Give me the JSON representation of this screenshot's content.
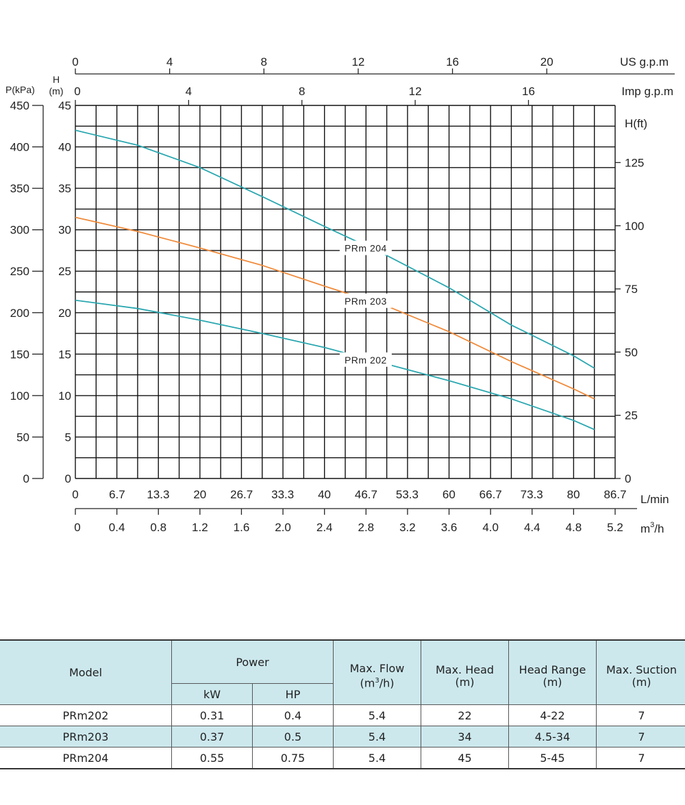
{
  "chart_data": {
    "type": "line",
    "axes": {
      "top_us": {
        "label": "US g.p.m",
        "ticks": [
          "0",
          "4",
          "8",
          "12",
          "16",
          "20"
        ],
        "range": [
          0,
          22.9
        ]
      },
      "top_imp": {
        "label": "Imp g.p.m",
        "ticks": [
          "0",
          "4",
          "8",
          "12",
          "16"
        ],
        "range": [
          0,
          19.06
        ]
      },
      "bottom_lmin": {
        "label": "L/min",
        "ticks": [
          "0",
          "6.7",
          "13.3",
          "20",
          "26.7",
          "33.3",
          "40",
          "46.7",
          "53.3",
          "60",
          "66.7",
          "73.3",
          "80",
          "86.7"
        ],
        "range": [
          0,
          86.7
        ]
      },
      "bottom_m3h": {
        "label_base": "m",
        "label_sup": "3",
        "label_tail": "/h",
        "ticks": [
          "0",
          "0.4",
          "0.8",
          "1.2",
          "1.6",
          "2.0",
          "2.4",
          "2.8",
          "3.2",
          "3.6",
          "4.0",
          "4.4",
          "4.8",
          "5.2"
        ],
        "range": [
          0,
          5.2
        ]
      },
      "left_kpa": {
        "label": "P(kPa)",
        "ticks": [
          "0",
          "50",
          "100",
          "150",
          "200",
          "250",
          "300",
          "350",
          "400",
          "450"
        ],
        "range": [
          0,
          450
        ]
      },
      "left_m": {
        "label_top": "H",
        "label_bottom": "(m)",
        "ticks": [
          "0",
          "5",
          "10",
          "15",
          "20",
          "25",
          "30",
          "35",
          "40",
          "45"
        ],
        "range": [
          0,
          45
        ]
      },
      "right_ft": {
        "label": "H(ft)",
        "ticks": [
          "0",
          "25",
          "50",
          "75",
          "100",
          "125"
        ],
        "range": [
          0,
          147.6
        ]
      }
    },
    "grid": true,
    "x_units": "m3/h",
    "y_units": "m",
    "series": [
      {
        "name": "PRm 204",
        "color": "#2aa7b0",
        "x": [
          0,
          0.6,
          1.2,
          1.8,
          2.4,
          3.0,
          3.6,
          4.2,
          4.8,
          5.0
        ],
        "y": [
          42.0,
          40.2,
          37.5,
          34.0,
          30.4,
          26.9,
          23.0,
          18.5,
          14.8,
          13.3
        ]
      },
      {
        "name": "PRm 203",
        "color": "#f08a3a",
        "x": [
          0,
          0.6,
          1.2,
          1.8,
          2.4,
          3.0,
          3.6,
          4.2,
          4.8,
          5.0
        ],
        "y": [
          31.5,
          29.8,
          27.8,
          25.7,
          23.2,
          20.8,
          17.7,
          14.1,
          10.8,
          9.6
        ]
      },
      {
        "name": "PRm 202",
        "color": "#2aa7b0",
        "x": [
          0,
          0.6,
          1.2,
          1.8,
          2.4,
          3.0,
          3.6,
          4.2,
          4.8,
          5.0
        ],
        "y": [
          21.5,
          20.5,
          19.1,
          17.5,
          15.8,
          13.8,
          11.8,
          9.6,
          7.0,
          5.9
        ]
      }
    ]
  },
  "table": {
    "headers": {
      "model": "Model",
      "power": "Power",
      "kw": "kW",
      "hp": "HP",
      "max_flow": "Max. Flow",
      "max_flow_unit_base": "(m",
      "max_flow_unit_sup": "3",
      "max_flow_unit_tail": "/h)",
      "max_head": "Max. Head",
      "max_head_unit": "(m)",
      "head_range": "Head Range",
      "head_range_unit": "(m)",
      "max_suction": "Max. Suction",
      "max_suction_unit": "(m)"
    },
    "rows": [
      {
        "model": "PRm202",
        "kw": "0.31",
        "hp": "0.4",
        "max_flow": "5.4",
        "max_head": "22",
        "head_range": "4-22",
        "max_suction": "7"
      },
      {
        "model": "PRm203",
        "kw": "0.37",
        "hp": "0.5",
        "max_flow": "5.4",
        "max_head": "34",
        "head_range": "4.5-34",
        "max_suction": "7"
      },
      {
        "model": "PRm204",
        "kw": "0.55",
        "hp": "0.75",
        "max_flow": "5.4",
        "max_head": "45",
        "head_range": "5-45",
        "max_suction": "7"
      }
    ]
  }
}
